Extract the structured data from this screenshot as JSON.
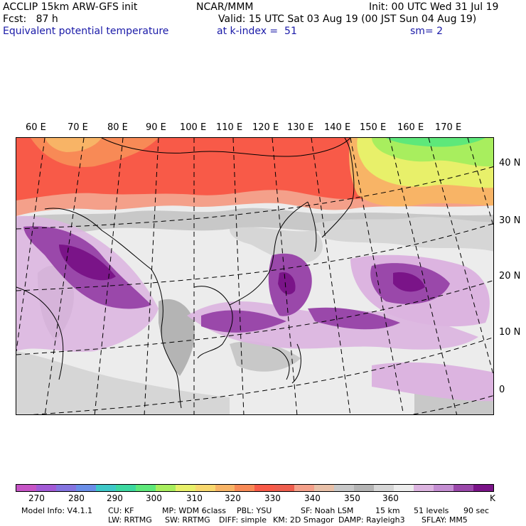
{
  "header": {
    "model": "ACCLIP 15km ARW-GFS init",
    "org": "NCAR/MMM",
    "init": "Init: 00 UTC Wed 31 Jul 19",
    "fcst": "Fcst:   87 h",
    "valid": "Valid: 15 UTC Sat 03 Aug 19 (00 JST Sun 04 Aug 19)",
    "field": "Equivalent potential temperature",
    "level": "at k-index =  51",
    "sm": "sm= 2"
  },
  "map": {
    "lon_labels": [
      "60 E",
      "70 E",
      "80 E",
      "90 E",
      "100 E",
      "110 E",
      "120 E",
      "130 E",
      "140 E",
      "150 E",
      "160 E",
      "170 E"
    ],
    "lat_labels": [
      "40 N",
      "30 N",
      "20 N",
      "10 N",
      "0"
    ]
  },
  "colorbar": {
    "colors": [
      "#c654c6",
      "#a25ad6",
      "#8474e0",
      "#6a8ee8",
      "#3ec8c8",
      "#3cd8a0",
      "#5ee87a",
      "#a8ee5e",
      "#e8f06a",
      "#f8d86e",
      "#f8b466",
      "#f88a56",
      "#f85a48",
      "#ee5e4e",
      "#f4a08a",
      "#e8c0a8",
      "#c8c8c8",
      "#b4b4b4",
      "#d6d6d6",
      "#ececec",
      "#dcb4e0",
      "#c48ed2",
      "#9a48aa",
      "#7a1488"
    ],
    "labels": [
      "270",
      "280",
      "290",
      "300",
      "310",
      "320",
      "330",
      "340",
      "350",
      "360",
      "K"
    ]
  },
  "footer": {
    "line1": [
      "Model Info: V4.1.1",
      "CU: KF",
      "MP: WDM 6class",
      "PBL: YSU",
      "SF: Noah LSM",
      "15 km",
      "51 levels",
      "90 sec"
    ],
    "line2": [
      "LW: RRTMG",
      "SW: RRTMG",
      "DIFF: simple",
      "KM: 2D Smagor",
      "DAMP: Rayleigh3",
      "SFLAY: MM5"
    ]
  }
}
